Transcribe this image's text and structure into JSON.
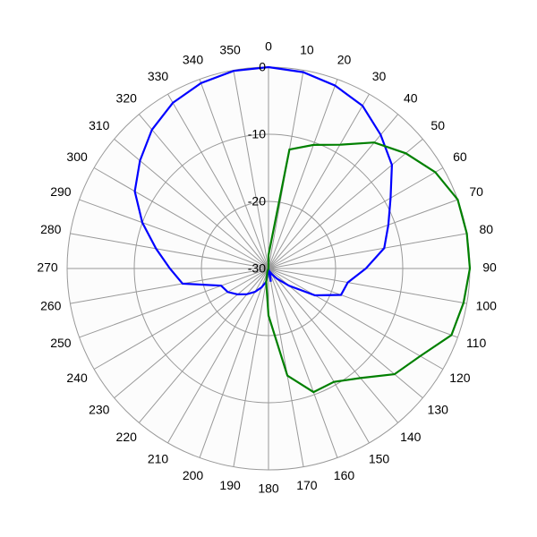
{
  "chart_data": {
    "type": "polar",
    "theta": [
      0,
      10,
      20,
      30,
      40,
      50,
      60,
      70,
      80,
      90,
      100,
      110,
      120,
      130,
      140,
      150,
      160,
      170,
      180,
      190,
      200,
      210,
      220,
      230,
      240,
      250,
      260,
      270,
      280,
      290,
      300,
      310,
      320,
      330,
      340,
      350
    ],
    "thetaticks": [
      0,
      10,
      20,
      30,
      40,
      50,
      60,
      70,
      80,
      90,
      100,
      110,
      120,
      130,
      140,
      150,
      160,
      170,
      180,
      190,
      200,
      210,
      220,
      230,
      240,
      250,
      260,
      270,
      280,
      290,
      300,
      310,
      320,
      330,
      340,
      350
    ],
    "rlim": [
      -30,
      0
    ],
    "rticks": [
      -30,
      -20,
      -10,
      0
    ],
    "grid": true,
    "series": [
      {
        "color": "#0000ff",
        "values": [
          0,
          -0.3,
          -1,
          -2,
          -4,
          -6,
          -9,
          -11,
          -12.5,
          -15.5,
          -18,
          -18.5,
          -22,
          -26,
          -28,
          -29,
          -29.5,
          -28,
          -30,
          -28,
          -27,
          -26,
          -25,
          -24,
          -23,
          -22.5,
          -17,
          -15.3,
          -13,
          -10,
          -7,
          -5,
          -3,
          -1.5,
          -0.6,
          -0.1
        ]
      },
      {
        "color": "#008000",
        "values": [
          -28,
          -12,
          -10.4,
          -8.7,
          -5.5,
          -3.3,
          -1.3,
          0,
          0,
          0,
          -0.5,
          -1,
          -3.9,
          -5.5,
          -8.7,
          -10.5,
          -10.4,
          -13.8,
          -23,
          -28,
          -29.5,
          -30,
          -30,
          -30,
          -30,
          -30,
          -30,
          -30,
          -30,
          -30,
          -30,
          -30,
          -30,
          -30,
          -30,
          -30
        ]
      }
    ]
  }
}
